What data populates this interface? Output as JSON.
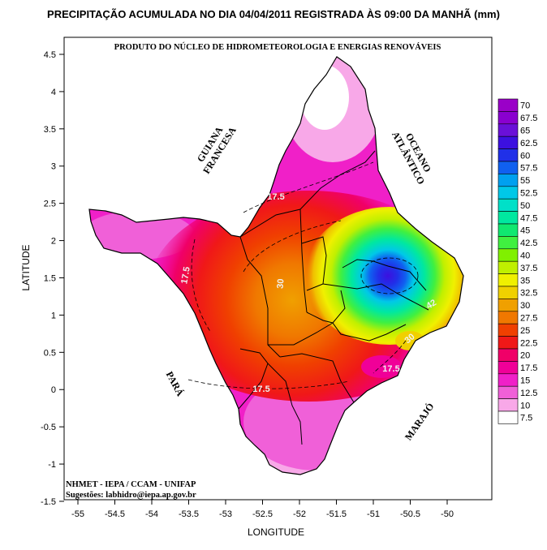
{
  "title": "PRECIPITAÇÃO ACUMULADA NO DIA 04/04/2011 REGISTRADA ÀS 09:00 DA MANHÃ (mm)",
  "subtitle": "PRODUTO DO NÚCLEO DE HIDROMETEOROLOGIA E ENERGIAS RENOVÁVEIS",
  "credits": {
    "line1": "NHMET - IEPA  /  CCAM - UNIFAP",
    "line2": "Sugestões: labhidro@iepa.ap.gov.br"
  },
  "regions": {
    "guiana_line1": "GUIANA",
    "guiana_line2": "FRANCESA",
    "oceano_line1": "OCEANO",
    "oceano_line2": "ATLÂNTICO",
    "para": "PARÁ",
    "marajo": "MARAJÓ"
  },
  "axes": {
    "xlabel": "LONGITUDE",
    "ylabel": "LATITUDE",
    "xticks": [
      "-55",
      "-54.5",
      "-54",
      "-53.5",
      "-53",
      "-52.5",
      "-52",
      "-51.5",
      "-51",
      "-50.5",
      "-50"
    ],
    "yticks": [
      "4.5",
      "4",
      "3.5",
      "3",
      "2.5",
      "2",
      "1.5",
      "1",
      "0.5",
      "0",
      "-0.5",
      "-1",
      "-1.5"
    ],
    "xlim": [
      -55.2,
      -49.5
    ],
    "ylim": [
      -1.5,
      4.65
    ]
  },
  "legend": {
    "labels": [
      "70",
      "67.5",
      "65",
      "62.5",
      "60",
      "57.5",
      "55",
      "52.5",
      "50",
      "47.5",
      "45",
      "42.5",
      "40",
      "37.5",
      "35",
      "32.5",
      "30",
      "27.5",
      "25",
      "22.5",
      "20",
      "17.5",
      "15",
      "12.5",
      "10",
      "7.5"
    ],
    "colors": [
      "#9a00c8",
      "#8a00d0",
      "#6a10d8",
      "#3c10e0",
      "#2030e8",
      "#1060f0",
      "#00a0f0",
      "#00c8e8",
      "#00e0c8",
      "#00e8a0",
      "#10e870",
      "#40f040",
      "#80f000",
      "#c0f000",
      "#f0f000",
      "#f0d000",
      "#f0a000",
      "#f07800",
      "#f04000",
      "#f01818",
      "#f00068",
      "#f00098",
      "#f020c8",
      "#f060d8",
      "#f8a8e8",
      "#ffffff"
    ]
  },
  "chart_data": {
    "type": "heatmap",
    "title": "PRECIPITAÇÃO ACUMULADA NO DIA 04/04/2011 REGISTRADA ÀS 09:00 DA MANHÃ (mm)",
    "subtitle": "PRODUTO DO NÚCLEO DE HIDROMETEOROLOGIA E ENERGIAS RENOVÁVEIS",
    "xlabel": "LONGITUDE",
    "ylabel": "LATITUDE",
    "xlim": [
      -55.2,
      -49.5
    ],
    "ylim": [
      -1.5,
      4.65
    ],
    "unit": "mm",
    "contour_labels": [
      {
        "text": "17.5",
        "lon": -52.35,
        "lat": 2.6
      },
      {
        "text": "17.5",
        "lon": -53.55,
        "lat": 1.5
      },
      {
        "text": "17.5",
        "lon": -52.55,
        "lat": 0.0
      },
      {
        "text": "17.5",
        "lon": -51.0,
        "lat": 0.3
      },
      {
        "text": "30",
        "lon": -52.2,
        "lat": 1.45
      },
      {
        "text": "42",
        "lon": -50.55,
        "lat": 1.12
      },
      {
        "text": "30",
        "lon": -50.45,
        "lat": 0.7
      }
    ],
    "maximum_center": {
      "lon": -50.9,
      "lat": 1.55
    }
  }
}
